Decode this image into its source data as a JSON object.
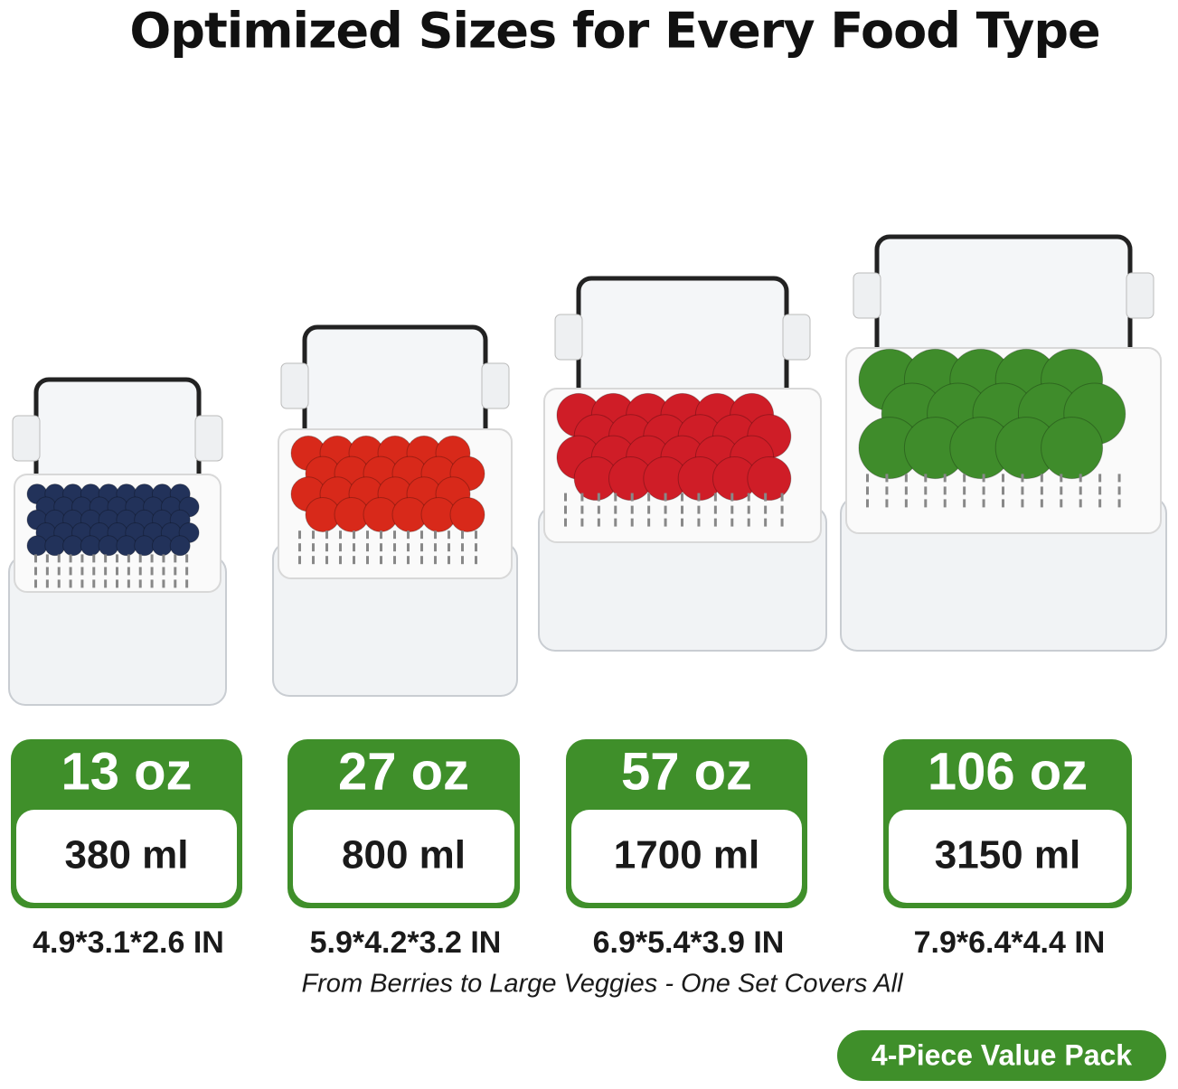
{
  "header": {
    "title": "Optimized Sizes for Every Food Type"
  },
  "products": [
    {
      "oz": "13 oz",
      "ml": "380 ml",
      "dimensions": "4.9*3.1*2.6 IN"
    },
    {
      "oz": "27 oz",
      "ml": "800 ml",
      "dimensions": "5.9*4.2*3.2 IN"
    },
    {
      "oz": "57 oz",
      "ml": "1700 ml",
      "dimensions": "6.9*5.4*3.9 IN"
    },
    {
      "oz": "106 oz",
      "ml": "3150 ml",
      "dimensions": "7.9*6.4*4.4 IN"
    }
  ],
  "tagline": "From Berries to Large Veggies - One Set Covers All",
  "badge": "4-Piece Value Pack"
}
